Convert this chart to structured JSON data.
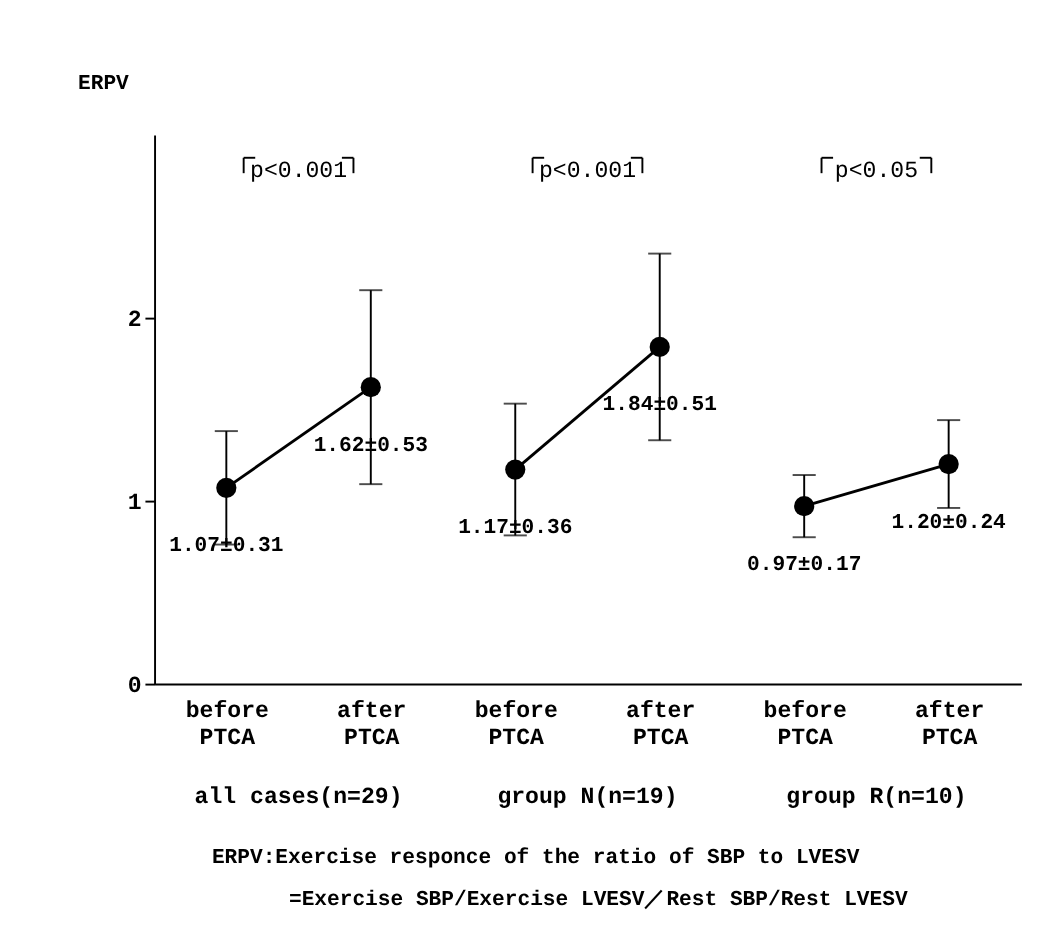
{
  "chart_data": {
    "type": "line",
    "ylabel": "ERPV",
    "categories": [
      "before PTCA",
      "after PTCA",
      "before PTCA",
      "after PTCA",
      "before PTCA",
      "after PTCA"
    ],
    "series": [
      {
        "color": "#000000",
        "values": [
          1.07,
          1.62,
          null,
          null,
          null,
          null
        ],
        "errors": [
          0.31,
          0.53,
          null,
          null,
          null,
          null
        ],
        "value_labels": [
          "1.07±0.31",
          "1.62±0.53",
          null,
          null,
          null,
          null
        ]
      },
      {
        "color": "#000000",
        "values": [
          null,
          null,
          1.17,
          1.84,
          null,
          null
        ],
        "errors": [
          null,
          null,
          0.36,
          0.51,
          null,
          null
        ],
        "value_labels": [
          null,
          null,
          "1.17±0.36",
          "1.84±0.51",
          null,
          null
        ]
      },
      {
        "color": "#000000",
        "values": [
          null,
          null,
          null,
          null,
          0.97,
          1.2
        ],
        "errors": [
          null,
          null,
          null,
          null,
          0.17,
          0.24
        ],
        "value_labels": [
          null,
          null,
          null,
          null,
          "0.97±0.17",
          "1.20±0.24"
        ]
      }
    ],
    "ylim": [
      0,
      3
    ],
    "yticks": [
      0,
      1,
      2
    ],
    "marker": "circle",
    "line_style": "solid",
    "grid": false,
    "annotations": [
      "p<0.001",
      "p<0.001",
      "p<0.05",
      "all cases(n=29)",
      "group N(n=19)",
      "group R(n=10)",
      "ERPV:Exercise responce of the ratio of SBP to LVESV",
      "=Exercise SBP/Exercise LVESV／Rest SBP/Rest LVESV"
    ]
  }
}
